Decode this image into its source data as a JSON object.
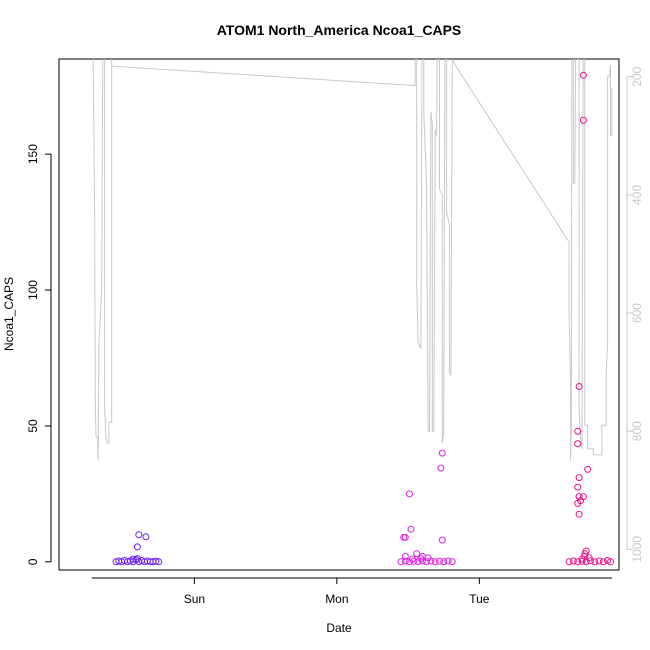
{
  "chart_data": {
    "type": "scatter",
    "title": "ATOM1 North_America Ncoa1_CAPS",
    "xlabel": "Date",
    "ylabel": "Ncoa1_CAPS",
    "x_ticks": [
      {
        "label": "Sun",
        "value": 1.0
      },
      {
        "label": "Mon",
        "value": 2.0
      },
      {
        "label": "Tue",
        "value": 3.0
      }
    ],
    "xlim": [
      0.05,
      3.98
    ],
    "ylim": [
      -3,
      185
    ],
    "y_ticks": [
      0,
      50,
      100,
      150
    ],
    "right_axis": {
      "label": "",
      "ticks": [
        200,
        400,
        600,
        800,
        1000
      ],
      "ylim": [
        1035,
        170
      ],
      "reversed": true,
      "color": "#c8c8c8"
    },
    "grid": false,
    "legend": "none",
    "series": [
      {
        "color": "#6a1ff2",
        "points": [
          [
            0.45,
            0
          ],
          [
            0.47,
            0.3
          ],
          [
            0.49,
            0
          ],
          [
            0.51,
            0.5
          ],
          [
            0.53,
            0
          ],
          [
            0.55,
            0.4
          ],
          [
            0.57,
            0
          ],
          [
            0.59,
            0.8
          ],
          [
            0.61,
            0
          ],
          [
            0.63,
            0.5
          ],
          [
            0.65,
            0
          ],
          [
            0.67,
            0.3
          ],
          [
            0.69,
            0
          ],
          [
            0.71,
            0
          ],
          [
            0.73,
            0.2
          ],
          [
            0.75,
            0
          ],
          [
            0.57,
            1.0
          ],
          [
            0.6,
            1.2
          ],
          [
            0.6,
            5.5
          ],
          [
            0.61,
            10.0
          ],
          [
            0.66,
            9.2
          ]
        ]
      },
      {
        "color": "#e020e8",
        "points": [
          [
            2.45,
            0
          ],
          [
            2.48,
            0.3
          ],
          [
            2.51,
            0
          ],
          [
            2.54,
            0.2
          ],
          [
            2.57,
            0
          ],
          [
            2.6,
            0.4
          ],
          [
            2.63,
            0
          ],
          [
            2.66,
            0.3
          ],
          [
            2.69,
            0
          ],
          [
            2.72,
            0.2
          ],
          [
            2.75,
            0
          ],
          [
            2.78,
            0.3
          ],
          [
            2.81,
            0
          ],
          [
            2.48,
            2.0
          ],
          [
            2.53,
            1.0
          ],
          [
            2.59,
            1.2
          ],
          [
            2.64,
            1.5
          ],
          [
            2.47,
            9.0
          ],
          [
            2.48,
            9.0
          ],
          [
            2.52,
            12.0
          ],
          [
            2.51,
            25.0
          ],
          [
            2.56,
            3.0
          ],
          [
            2.6,
            2.0
          ],
          [
            2.74,
            8.0
          ],
          [
            2.73,
            34.5
          ],
          [
            2.74,
            40.0
          ]
        ]
      },
      {
        "color": "#f0108a",
        "points": [
          [
            3.63,
            0
          ],
          [
            3.66,
            0.3
          ],
          [
            3.69,
            0
          ],
          [
            3.72,
            0.2
          ],
          [
            3.75,
            0
          ],
          [
            3.78,
            0.4
          ],
          [
            3.81,
            0
          ],
          [
            3.84,
            0.3
          ],
          [
            3.87,
            0
          ],
          [
            3.9,
            0.5
          ],
          [
            3.92,
            0
          ],
          [
            3.72,
            1.0
          ],
          [
            3.74,
            2.0
          ],
          [
            3.77,
            1.5
          ],
          [
            3.69,
            48.0
          ],
          [
            3.69,
            43.5
          ],
          [
            3.7,
            64.5
          ],
          [
            3.7,
            31.0
          ],
          [
            3.69,
            27.5
          ],
          [
            3.7,
            24.0
          ],
          [
            3.71,
            22.5
          ],
          [
            3.69,
            21.5
          ],
          [
            3.73,
            24.0
          ],
          [
            3.7,
            17.5
          ],
          [
            3.75,
            4.0
          ],
          [
            3.74,
            3.0
          ],
          [
            3.76,
            34.0
          ],
          [
            3.73,
            162.5
          ],
          [
            3.73,
            179.0
          ]
        ]
      }
    ],
    "trace": {
      "color": "#c8c8c8",
      "points": [
        [
          0.29,
          0
        ],
        [
          0.29,
          170
        ],
        [
          0.3,
          420
        ],
        [
          0.305,
          740
        ],
        [
          0.31,
          810
        ],
        [
          0.32,
          810
        ],
        [
          0.325,
          850
        ],
        [
          0.33,
          650
        ],
        [
          0.35,
          560
        ],
        [
          0.36,
          0
        ],
        [
          0.37,
          0
        ],
        [
          0.37,
          760
        ],
        [
          0.38,
          810
        ],
        [
          0.39,
          820
        ],
        [
          0.4,
          820
        ],
        [
          0.4,
          785
        ],
        [
          0.42,
          785
        ],
        [
          0.42,
          170
        ],
        [
          0.42,
          182
        ],
        [
          2.55,
          215
        ],
        [
          2.55,
          0
        ],
        [
          2.56,
          0
        ],
        [
          2.56,
          550
        ],
        [
          2.57,
          650
        ],
        [
          2.59,
          660
        ],
        [
          2.6,
          0
        ],
        [
          2.61,
          0
        ],
        [
          2.61,
          260
        ],
        [
          2.63,
          380
        ],
        [
          2.64,
          800
        ],
        [
          2.65,
          800
        ],
        [
          2.66,
          260
        ],
        [
          2.67,
          280
        ],
        [
          2.67,
          800
        ],
        [
          2.68,
          800
        ],
        [
          2.69,
          290
        ],
        [
          2.7,
          300
        ],
        [
          2.71,
          0
        ],
        [
          2.72,
          0
        ],
        [
          2.72,
          390
        ],
        [
          2.74,
          400
        ],
        [
          2.74,
          820
        ],
        [
          2.75,
          800
        ],
        [
          2.76,
          0
        ],
        [
          2.77,
          0
        ],
        [
          2.77,
          430
        ],
        [
          2.79,
          450
        ],
        [
          2.79,
          700
        ],
        [
          2.8,
          705
        ],
        [
          2.81,
          170
        ],
        [
          2.83,
          180
        ],
        [
          3.63,
          480
        ],
        [
          3.63,
          600
        ],
        [
          3.64,
          730
        ],
        [
          3.64,
          850
        ],
        [
          3.645,
          800
        ],
        [
          3.65,
          0
        ],
        [
          3.66,
          0
        ],
        [
          3.66,
          380
        ],
        [
          3.67,
          380
        ],
        [
          3.68,
          0
        ],
        [
          3.69,
          0
        ],
        [
          3.69,
          170
        ],
        [
          3.7,
          170
        ],
        [
          3.7,
          760
        ],
        [
          3.71,
          810
        ],
        [
          3.72,
          830
        ],
        [
          3.73,
          0
        ],
        [
          3.74,
          0
        ],
        [
          3.74,
          790
        ],
        [
          3.76,
          790
        ],
        [
          3.76,
          830
        ],
        [
          3.8,
          830
        ],
        [
          3.8,
          840
        ],
        [
          3.86,
          840
        ],
        [
          3.86,
          790
        ],
        [
          3.89,
          790
        ],
        [
          3.89,
          700
        ],
        [
          3.9,
          650
        ],
        [
          3.9,
          200
        ],
        [
          3.91,
          200
        ],
        [
          3.92,
          180
        ],
        [
          3.92,
          300
        ],
        [
          3.93,
          300
        ],
        [
          3.93,
          220
        ]
      ]
    }
  }
}
